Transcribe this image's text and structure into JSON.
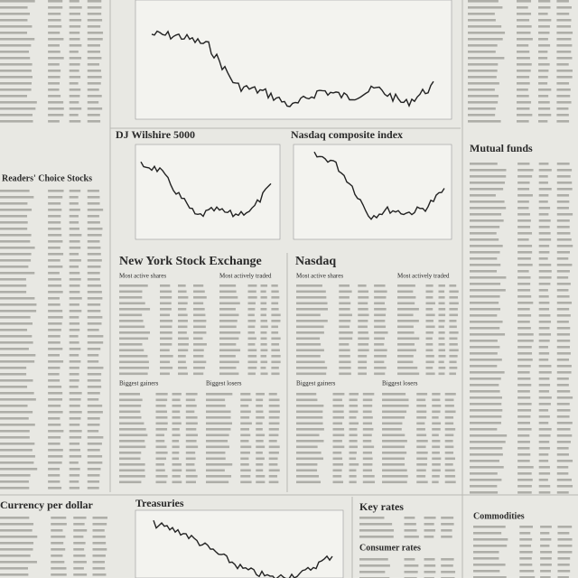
{
  "headings": {
    "wilshire": "DJ Wilshire 5000",
    "nasdaq_index": "Nasdaq composite index",
    "nyse": "New York Stock Exchange",
    "nasdaq": "Nasdaq",
    "mutual_funds": "Mutual funds",
    "readers_choice": "Readers' Choice Stocks",
    "currency": "Currency per dollar",
    "treasuries": "Treasuries",
    "key_rates": "Key rates",
    "commodities": "Commodities",
    "consumer_rates": "Consumer rates"
  },
  "subheads": {
    "nyse_active": "Most active shares",
    "nyse_traded": "Most actively traded",
    "nyse_gainers": "Biggest gainers",
    "nyse_losers": "Biggest losers",
    "nasdaq_active": "Most active shares",
    "nasdaq_traded": "Most actively traded",
    "nasdaq_gainers": "Biggest gainers",
    "nasdaq_losers": "Biggest losers"
  }
}
